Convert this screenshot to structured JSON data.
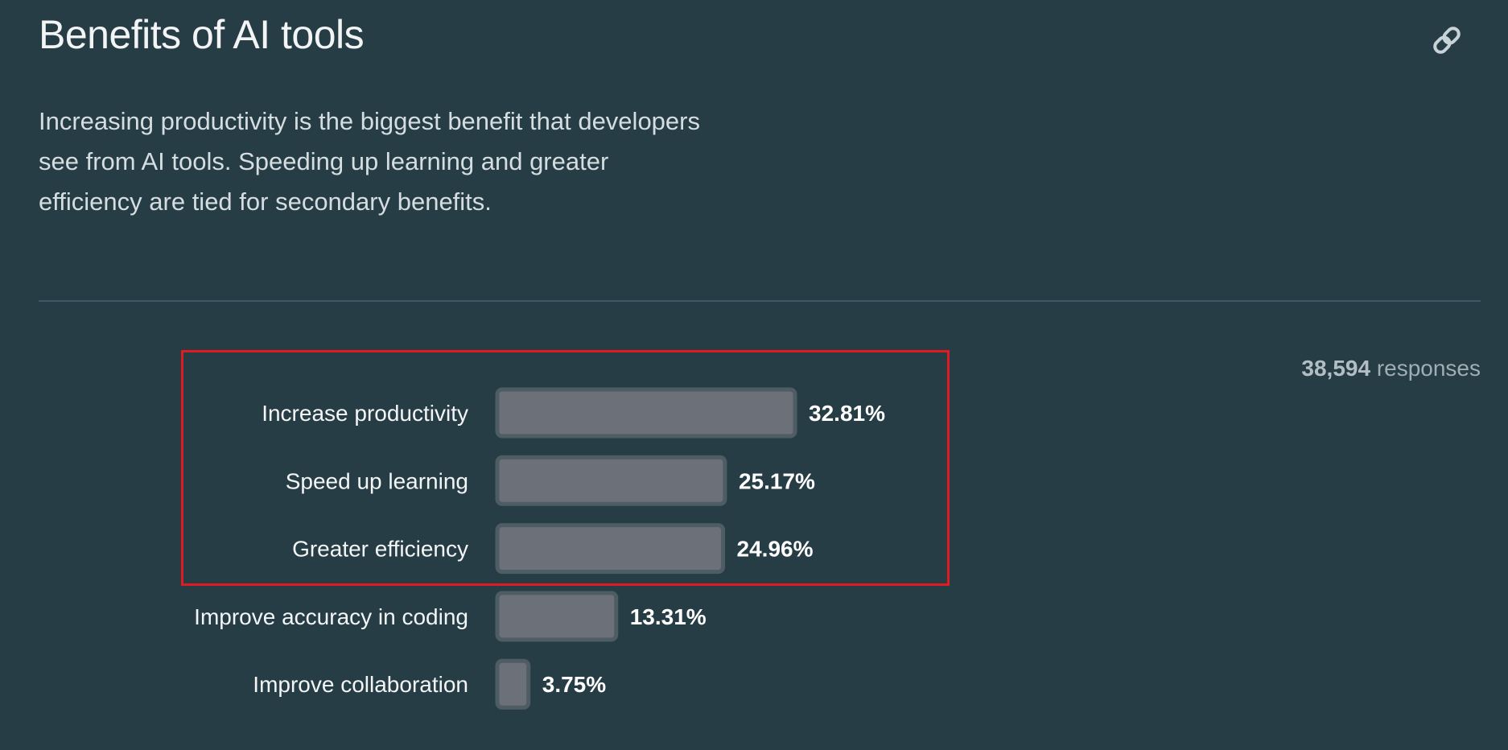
{
  "header": {
    "title": "Benefits of AI tools",
    "description": "Increasing productivity is the biggest benefit that developers see from AI tools. Speeding up learning and greater efficiency are tied for secondary benefits.",
    "link_icon": "link-icon"
  },
  "responses": {
    "count": "38,594",
    "label": "responses"
  },
  "colors": {
    "background": "#263d45",
    "bar_fill": "#6b7079",
    "bar_border": "#4e5c64",
    "highlight": "#e01b22"
  },
  "chart_data": {
    "type": "bar",
    "orientation": "horizontal",
    "categories": [
      "Increase productivity",
      "Speed up learning",
      "Greater efficiency",
      "Improve accuracy in coding",
      "Improve collaboration"
    ],
    "values": [
      32.81,
      25.17,
      24.96,
      13.31,
      3.75
    ],
    "value_labels": [
      "32.81%",
      "25.17%",
      "24.96%",
      "13.31%",
      "3.75%"
    ],
    "xlim": [
      0,
      100
    ],
    "grid": false,
    "highlighted_categories": [
      "Increase productivity",
      "Speed up learning",
      "Greater efficiency"
    ]
  }
}
